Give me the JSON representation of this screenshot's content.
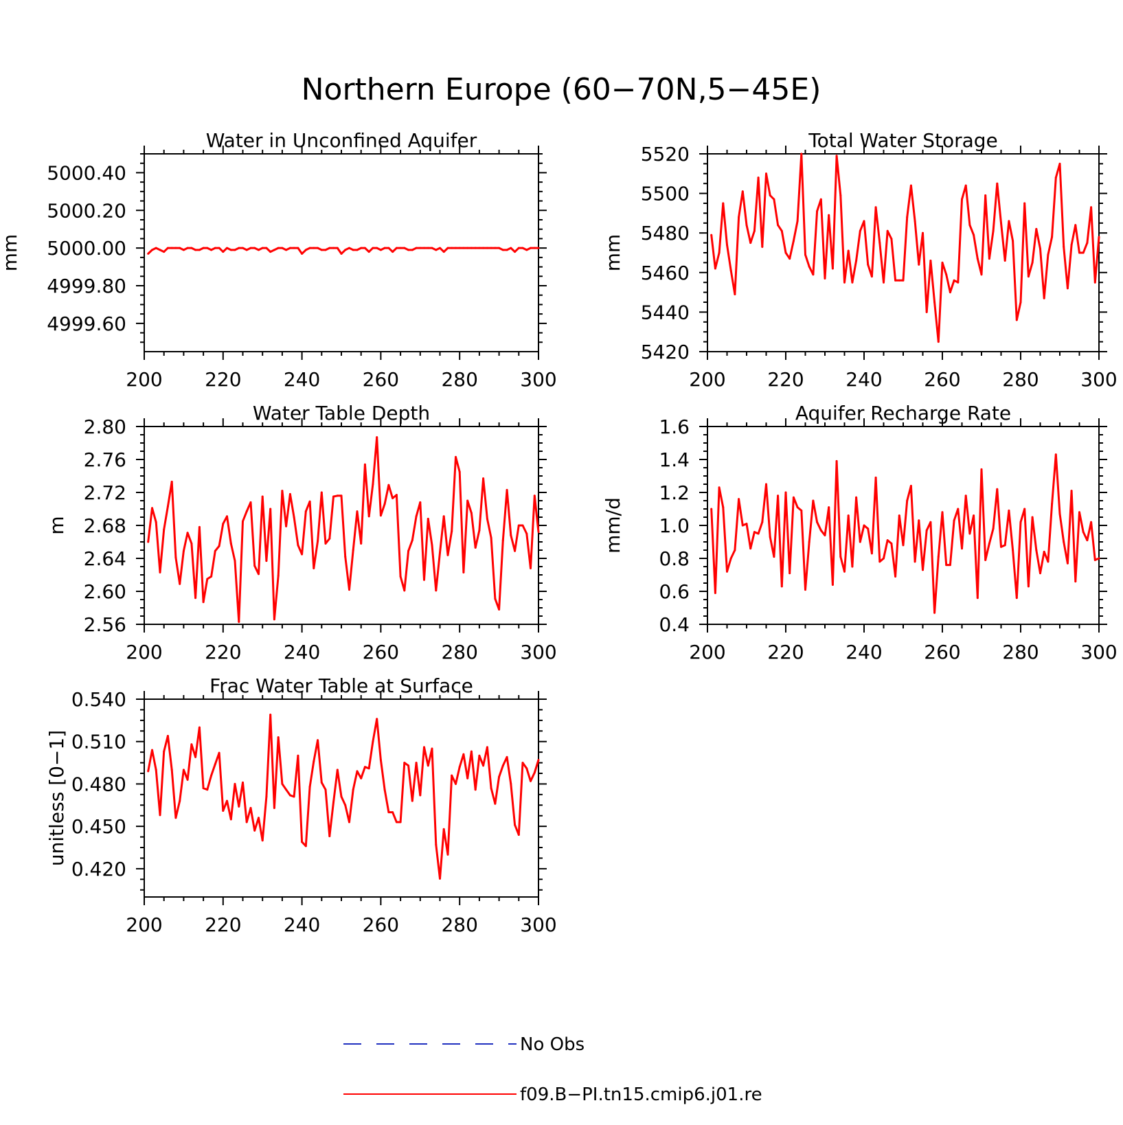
{
  "title": "Northern Europe (60−70N,5−45E)",
  "colors": {
    "model": "#ff0000",
    "obs": "#1f2fbf",
    "axis": "#000000"
  },
  "legend": [
    {
      "label": "No Obs",
      "style": "dashed",
      "color": "#1f2fbf"
    },
    {
      "label": "f09.B−PI.tn15.cmip6.j01.re",
      "style": "solid",
      "color": "#ff0000"
    }
  ],
  "chart_data": [
    {
      "type": "line",
      "title": "Water in Unconfined Aquifer",
      "ylabel": "mm",
      "xlim": [
        200,
        300
      ],
      "ylim": [
        4999.45,
        5000.5
      ],
      "xticks": [
        "200",
        "220",
        "240",
        "260",
        "280",
        "300"
      ],
      "yticks": [
        "5000.40",
        "5000.20",
        "5000.00",
        "4999.80",
        "4999.60"
      ],
      "ytick_values": [
        5000.4,
        5000.2,
        5000.0,
        4999.8,
        4999.6
      ],
      "x_start": 201,
      "values": [
        4999.97,
        4999.99,
        5000.0,
        4999.99,
        4999.98,
        5000.0,
        5000.0,
        5000.0,
        5000.0,
        4999.99,
        5000.0,
        5000.0,
        4999.99,
        4999.99,
        5000.0,
        5000.0,
        4999.99,
        5000.0,
        5000.0,
        4999.98,
        5000.0,
        4999.99,
        4999.99,
        5000.0,
        5000.0,
        4999.99,
        5000.0,
        5000.0,
        4999.99,
        5000.0,
        5000.0,
        4999.98,
        4999.99,
        5000.0,
        5000.0,
        4999.99,
        5000.0,
        5000.0,
        5000.0,
        4999.97,
        4999.99,
        5000.0,
        5000.0,
        5000.0,
        4999.99,
        4999.99,
        5000.0,
        5000.0,
        5000.0,
        4999.97,
        4999.99,
        5000.0,
        4999.99,
        4999.99,
        5000.0,
        5000.0,
        4999.98,
        5000.0,
        5000.0,
        4999.99,
        5000.0,
        5000.0,
        4999.98,
        5000.0,
        5000.0,
        5000.0,
        4999.99,
        4999.99,
        5000.0,
        5000.0,
        5000.0,
        5000.0,
        5000.0,
        4999.99,
        5000.0,
        4999.98,
        5000.0,
        5000.0,
        5000.0,
        5000.0,
        5000.0,
        5000.0,
        5000.0,
        5000.0,
        5000.0,
        5000.0,
        5000.0,
        5000.0,
        5000.0,
        5000.0,
        4999.99,
        4999.99,
        5000.0,
        4999.98,
        5000.0,
        5000.0,
        4999.99,
        5000.0,
        5000.0,
        5000.0
      ]
    },
    {
      "type": "line",
      "title": "Total Water Storage",
      "ylabel": "mm",
      "xlim": [
        200,
        300
      ],
      "ylim": [
        5420,
        5520
      ],
      "xticks": [
        "200",
        "220",
        "240",
        "260",
        "280",
        "300"
      ],
      "yticks": [
        "5520",
        "5500",
        "5480",
        "5460",
        "5440",
        "5420"
      ],
      "ytick_values": [
        5520,
        5500,
        5480,
        5460,
        5440,
        5420
      ],
      "x_start": 201,
      "values": [
        5479,
        5462,
        5470,
        5495,
        5474,
        5461,
        5449,
        5488,
        5501,
        5484,
        5475,
        5481,
        5508,
        5473,
        5510,
        5499,
        5497,
        5484,
        5481,
        5470,
        5467,
        5476,
        5486,
        5520,
        5469,
        5463,
        5459,
        5491,
        5497,
        5457,
        5489,
        5462,
        5519,
        5499,
        5455,
        5471,
        5455,
        5466,
        5481,
        5486,
        5464,
        5458,
        5493,
        5475,
        5455,
        5481,
        5477,
        5456,
        5456,
        5456,
        5488,
        5504,
        5486,
        5464,
        5480,
        5440,
        5466,
        5445,
        5425,
        5465,
        5459,
        5450,
        5456,
        5455,
        5497,
        5504,
        5484,
        5479,
        5467,
        5459,
        5499,
        5467,
        5481,
        5505,
        5485,
        5466,
        5486,
        5476,
        5436,
        5445,
        5495,
        5458,
        5465,
        5482,
        5472,
        5447,
        5469,
        5478,
        5508,
        5515,
        5473,
        5452,
        5474,
        5484,
        5470,
        5470,
        5475,
        5493,
        5455,
        5478
      ]
    },
    {
      "type": "line",
      "title": "Water Table Depth",
      "ylabel": "m",
      "xlim": [
        200,
        300
      ],
      "ylim": [
        2.56,
        2.8
      ],
      "xticks": [
        "200",
        "220",
        "240",
        "260",
        "280",
        "300"
      ],
      "yticks": [
        "2.80",
        "2.76",
        "2.72",
        "2.68",
        "2.64",
        "2.60",
        "2.56"
      ],
      "ytick_values": [
        2.8,
        2.76,
        2.72,
        2.68,
        2.64,
        2.6,
        2.56
      ],
      "x_start": 201,
      "values": [
        2.66,
        2.701,
        2.684,
        2.623,
        2.675,
        2.703,
        2.733,
        2.641,
        2.609,
        2.649,
        2.671,
        2.658,
        2.592,
        2.678,
        2.587,
        2.615,
        2.618,
        2.649,
        2.655,
        2.682,
        2.691,
        2.658,
        2.637,
        2.563,
        2.685,
        2.697,
        2.708,
        2.631,
        2.621,
        2.715,
        2.637,
        2.7,
        2.566,
        2.619,
        2.722,
        2.679,
        2.718,
        2.69,
        2.656,
        2.645,
        2.697,
        2.709,
        2.628,
        2.661,
        2.72,
        2.658,
        2.664,
        2.715,
        2.716,
        2.716,
        2.642,
        2.602,
        2.65,
        2.697,
        2.658,
        2.754,
        2.691,
        2.73,
        2.787,
        2.692,
        2.706,
        2.729,
        2.713,
        2.717,
        2.618,
        2.601,
        2.649,
        2.662,
        2.691,
        2.708,
        2.614,
        2.688,
        2.656,
        2.601,
        2.647,
        2.691,
        2.644,
        2.673,
        2.763,
        2.745,
        2.623,
        2.71,
        2.695,
        2.653,
        2.674,
        2.737,
        2.688,
        2.665,
        2.591,
        2.578,
        2.662,
        2.723,
        2.668,
        2.649,
        2.68,
        2.68,
        2.67,
        2.628,
        2.716,
        2.672
      ]
    },
    {
      "type": "line",
      "title": "Aquifer Recharge Rate",
      "ylabel": "mm/d",
      "xlim": [
        200,
        300
      ],
      "ylim": [
        0.4,
        1.6
      ],
      "xticks": [
        "200",
        "220",
        "240",
        "260",
        "280",
        "300"
      ],
      "yticks": [
        "1.6",
        "1.4",
        "1.2",
        "1.0",
        "0.8",
        "0.6",
        "0.4"
      ],
      "ytick_values": [
        1.6,
        1.4,
        1.2,
        1.0,
        0.8,
        0.6,
        0.4
      ],
      "x_start": 201,
      "values": [
        1.1,
        0.59,
        1.23,
        1.11,
        0.72,
        0.8,
        0.85,
        1.16,
        1.0,
        1.01,
        0.86,
        0.96,
        0.95,
        1.02,
        1.25,
        0.93,
        0.81,
        1.18,
        0.63,
        1.2,
        0.71,
        1.17,
        1.11,
        1.09,
        0.61,
        0.9,
        1.15,
        1.02,
        0.97,
        0.94,
        1.11,
        0.64,
        1.39,
        0.81,
        0.72,
        1.06,
        0.75,
        1.17,
        0.9,
        1.0,
        0.98,
        0.83,
        1.29,
        0.78,
        0.8,
        0.91,
        0.89,
        0.69,
        1.06,
        0.88,
        1.15,
        1.24,
        0.78,
        1.03,
        0.73,
        0.97,
        1.02,
        0.47,
        0.81,
        1.08,
        0.76,
        0.76,
        1.03,
        1.1,
        0.86,
        1.18,
        0.95,
        1.06,
        0.56,
        1.34,
        0.79,
        0.89,
        0.98,
        1.22,
        0.87,
        0.88,
        1.09,
        0.85,
        0.56,
        1.02,
        1.1,
        0.63,
        1.05,
        0.85,
        0.71,
        0.84,
        0.78,
        1.13,
        1.43,
        1.07,
        0.9,
        0.77,
        1.21,
        0.66,
        1.08,
        0.96,
        0.91,
        1.02,
        0.79,
        0.8
      ]
    },
    {
      "type": "line",
      "title": "Frac Water Table at Surface",
      "ylabel": "unitless [0−1]",
      "xlim": [
        200,
        300
      ],
      "ylim": [
        0.4,
        0.54
      ],
      "xticks": [
        "200",
        "220",
        "240",
        "260",
        "280",
        "300"
      ],
      "yticks": [
        "0.540",
        "0.510",
        "0.480",
        "0.450",
        "0.420"
      ],
      "ytick_values": [
        0.54,
        0.51,
        0.48,
        0.45,
        0.42
      ],
      "x_start": 201,
      "values": [
        0.489,
        0.504,
        0.49,
        0.458,
        0.503,
        0.514,
        0.49,
        0.456,
        0.468,
        0.49,
        0.483,
        0.508,
        0.499,
        0.52,
        0.477,
        0.476,
        0.486,
        0.494,
        0.502,
        0.461,
        0.468,
        0.455,
        0.48,
        0.464,
        0.481,
        0.453,
        0.463,
        0.447,
        0.456,
        0.44,
        0.471,
        0.529,
        0.463,
        0.513,
        0.48,
        0.476,
        0.472,
        0.471,
        0.5,
        0.439,
        0.436,
        0.478,
        0.496,
        0.511,
        0.481,
        0.476,
        0.443,
        0.467,
        0.49,
        0.471,
        0.465,
        0.453,
        0.476,
        0.489,
        0.484,
        0.492,
        0.491,
        0.51,
        0.526,
        0.497,
        0.476,
        0.46,
        0.46,
        0.453,
        0.453,
        0.495,
        0.493,
        0.468,
        0.495,
        0.472,
        0.506,
        0.493,
        0.505,
        0.437,
        0.413,
        0.448,
        0.43,
        0.486,
        0.48,
        0.492,
        0.501,
        0.484,
        0.503,
        0.476,
        0.5,
        0.493,
        0.506,
        0.477,
        0.466,
        0.485,
        0.493,
        0.499,
        0.48,
        0.451,
        0.444,
        0.495,
        0.491,
        0.482,
        0.488,
        0.497
      ]
    }
  ]
}
